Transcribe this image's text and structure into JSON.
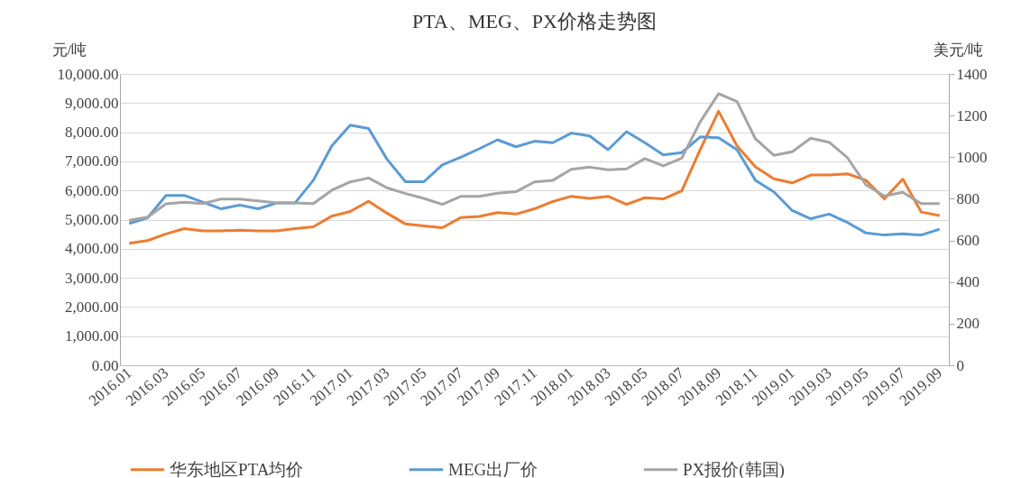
{
  "chart_data": {
    "type": "line",
    "title": "PTA、MEG、PX价格走势图",
    "ylabel": "元/吨",
    "y2label": "美元/吨",
    "categories": [
      "2016.01",
      null,
      "2016.03",
      null,
      "2016.05",
      null,
      "2016.07",
      null,
      "2016.09",
      null,
      "2016.11",
      null,
      "2017.01",
      null,
      "2017.03",
      null,
      "2017.05",
      null,
      "2017.07",
      null,
      "2017.09",
      null,
      "2017.11",
      null,
      "2018.01",
      null,
      "2018.03",
      null,
      "2018.05",
      null,
      "2018.07",
      null,
      "2018.09",
      null,
      "2018.11",
      null,
      "2019.01",
      null,
      "2019.03",
      null,
      "2019.05",
      null,
      "2019.07",
      null,
      "2019.09"
    ],
    "series": [
      {
        "name": "华东地区PTA均价",
        "color": "#ed7d31",
        "values": [
          4190,
          4280,
          4510,
          4690,
          4610,
          4610,
          4640,
          4610,
          4610,
          4690,
          4750,
          5120,
          5280,
          5630,
          5220,
          4850,
          4780,
          4720,
          5070,
          5110,
          5240,
          5190,
          5370,
          5620,
          5800,
          5730,
          5800,
          5520,
          5750,
          5710,
          5990,
          7400,
          8720,
          7530,
          6810,
          6400,
          6260,
          6530,
          6530,
          6570,
          6350,
          5710,
          6390,
          5260,
          5140
        ]
      },
      {
        "name": "MEG出厂价",
        "color": "#5b9bd5",
        "values": [
          4870,
          5060,
          5830,
          5830,
          5600,
          5370,
          5500,
          5370,
          5570,
          5570,
          6350,
          7530,
          8240,
          8130,
          7070,
          6300,
          6300,
          6880,
          7140,
          7430,
          7740,
          7500,
          7690,
          7640,
          7970,
          7870,
          7400,
          8020,
          7640,
          7220,
          7300,
          7840,
          7810,
          7400,
          6350,
          5950,
          5310,
          5030,
          5190,
          4900,
          4540,
          4470,
          4510,
          4470,
          4670
        ]
      },
      {
        "name": "PX报价(韩国)",
        "color": "#a5a5a5",
        "axis": "y2",
        "values": [
          697,
          712,
          776,
          783,
          777,
          799,
          799,
          790,
          780,
          780,
          777,
          841,
          881,
          900,
          853,
          825,
          802,
          773,
          812,
          812,
          827,
          834,
          881,
          889,
          942,
          952,
          939,
          944,
          993,
          958,
          995,
          1170,
          1305,
          1267,
          1088,
          1009,
          1026,
          1091,
          1072,
          997,
          867,
          814,
          831,
          777,
          777
        ]
      }
    ],
    "ylim": [
      0,
      10000
    ],
    "yticks": [
      {
        "value": 0,
        "label": "0.00"
      },
      {
        "value": 1000,
        "label": "1,000.00"
      },
      {
        "value": 2000,
        "label": "2,000.00"
      },
      {
        "value": 3000,
        "label": "3,000.00"
      },
      {
        "value": 4000,
        "label": "4,000.00"
      },
      {
        "value": 5000,
        "label": "5,000.00"
      },
      {
        "value": 6000,
        "label": "6,000.00"
      },
      {
        "value": 7000,
        "label": "7,000.00"
      },
      {
        "value": 8000,
        "label": "8,000.00"
      },
      {
        "value": 9000,
        "label": "9,000.00"
      },
      {
        "value": 10000,
        "label": "10,000.00"
      }
    ],
    "y2lim": [
      0,
      1400
    ],
    "y2ticks": [
      0,
      200,
      400,
      600,
      800,
      1000,
      1200,
      1400
    ],
    "grid": "y",
    "legend": "bottom"
  }
}
